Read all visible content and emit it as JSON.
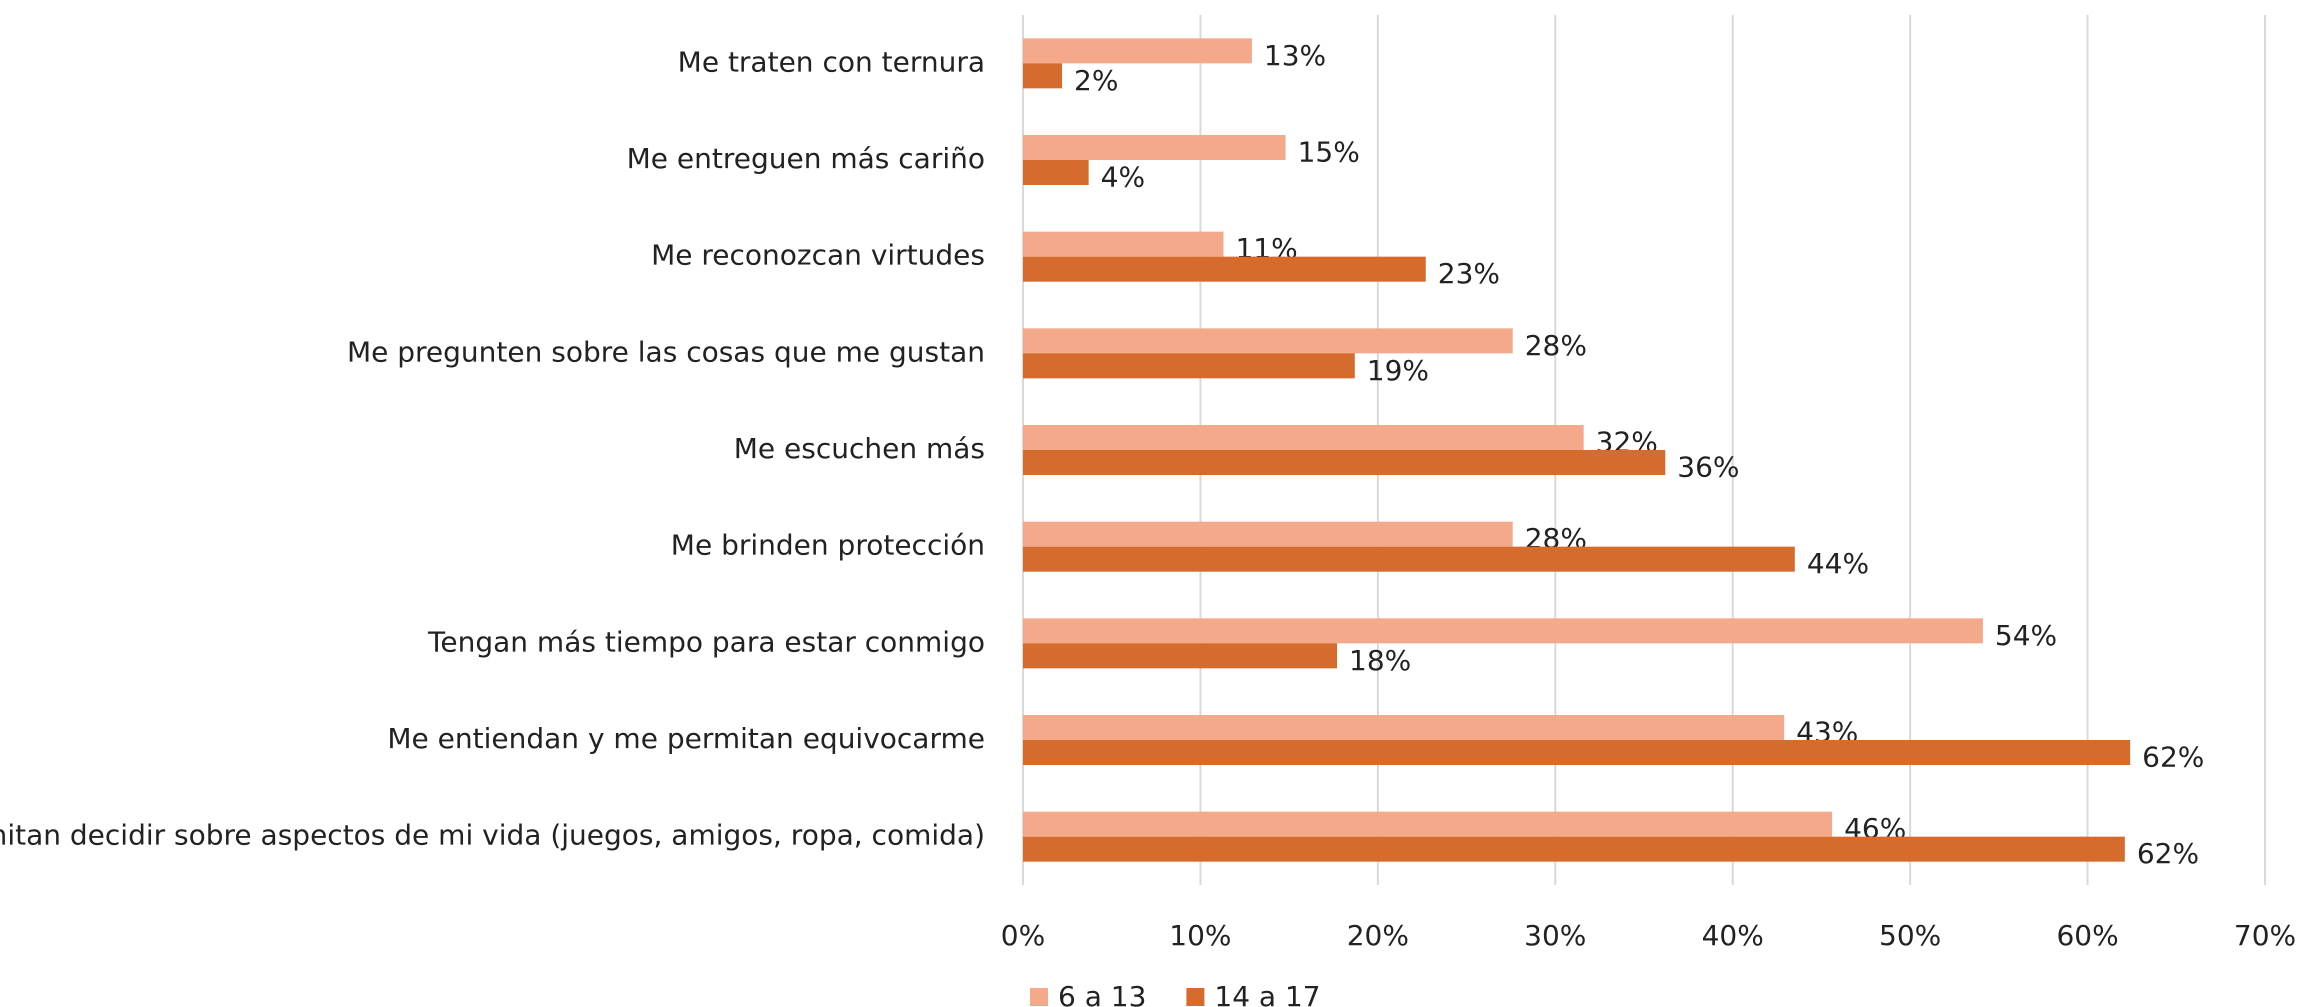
{
  "chart_data": {
    "type": "barh",
    "categories": [
      "Me traten con ternura",
      "Me entreguen más cariño",
      "Me reconozcan virtudes",
      "Me pregunten sobre las cosas que me gustan",
      "Me escuchen más",
      "Me brinden protección",
      "Tengan más tiempo para estar conmigo",
      "Me entiendan y me permitan equivocarme",
      "Me permitan decidir sobre aspectos de mi vida (juegos, amigos, ropa, comida)"
    ],
    "series": [
      {
        "name": "6 a 13",
        "color": "#f4a98a",
        "values": [
          12.9,
          14.8,
          11.3,
          27.6,
          31.6,
          27.6,
          54.1,
          42.9,
          45.6
        ],
        "value_labels": [
          "13%",
          "15%",
          "11%",
          "28%",
          "32%",
          "28%",
          "54%",
          "43%",
          "46%"
        ]
      },
      {
        "name": "14 a 17",
        "color": "#d56b2c",
        "values": [
          2.2,
          3.7,
          22.7,
          18.7,
          36.2,
          43.5,
          17.7,
          62.4,
          62.1
        ],
        "value_labels": [
          "2%",
          "4%",
          "23%",
          "19%",
          "36%",
          "44%",
          "18%",
          "62%",
          "62%"
        ]
      }
    ],
    "xlim": [
      0,
      70
    ],
    "xticks": [
      {
        "value": 0,
        "label": "0%"
      },
      {
        "value": 10,
        "label": "10%"
      },
      {
        "value": 20,
        "label": "20%"
      },
      {
        "value": 30,
        "label": "30%"
      },
      {
        "value": 40,
        "label": "40%"
      },
      {
        "value": 50,
        "label": "50%"
      },
      {
        "value": 60,
        "label": "60%"
      },
      {
        "value": 70,
        "label": "70%"
      }
    ],
    "grid": true,
    "legend": "bottom"
  }
}
